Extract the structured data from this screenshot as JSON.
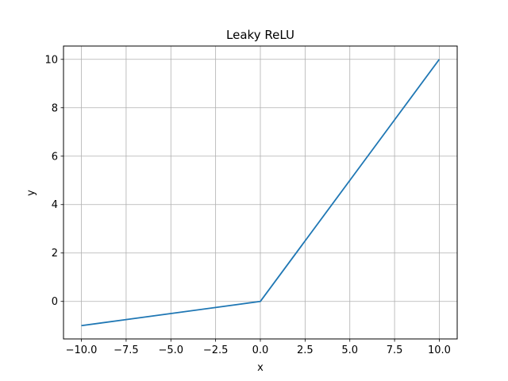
{
  "chart_data": {
    "type": "line",
    "title": "Leaky ReLU",
    "xlabel": "x",
    "ylabel": "y",
    "xlim": [
      -11.0,
      11.0
    ],
    "ylim": [
      -1.55,
      10.55
    ],
    "xticks": [
      -10.0,
      -7.5,
      -5.0,
      -2.5,
      0.0,
      2.5,
      5.0,
      7.5,
      10.0
    ],
    "xtick_labels": [
      "−10.0",
      "−7.5",
      "−5.0",
      "−2.5",
      "0.0",
      "2.5",
      "5.0",
      "7.5",
      "10.0"
    ],
    "yticks": [
      0,
      2,
      4,
      6,
      8,
      10
    ],
    "ytick_labels": [
      "0",
      "2",
      "4",
      "6",
      "8",
      "10"
    ],
    "grid": true,
    "series": [
      {
        "color": "#1f77b4",
        "x": [
          -10,
          -7.5,
          -5,
          -2.5,
          -0.1,
          0,
          0.1,
          2.5,
          5,
          7.5,
          10
        ],
        "y": [
          -1.0,
          -0.75,
          -0.5,
          -0.25,
          -0.01,
          0,
          0.1,
          2.5,
          5,
          7.5,
          10
        ]
      }
    ]
  }
}
